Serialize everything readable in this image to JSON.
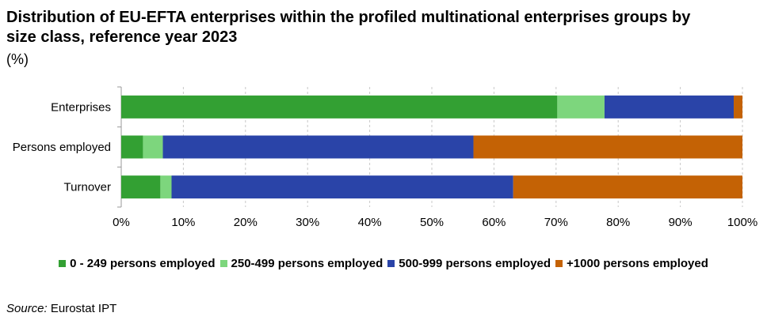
{
  "title": "Distribution of EU-EFTA enterprises within the profiled multinational enterprises groups by size class, reference year 2023",
  "subtitle": "(%)",
  "source": {
    "label": "Source:",
    "text": " Eurostat IPT"
  },
  "colors": [
    "#33a033",
    "#7dd67d",
    "#2a44a8",
    "#c46205"
  ],
  "chart_data": {
    "type": "bar",
    "orientation": "horizontal",
    "stacked": true,
    "categories": [
      "Enterprises",
      "Persons employed",
      "Turnover"
    ],
    "series": [
      {
        "name": "0 - 249 persons employed",
        "values": [
          70.2,
          3.5,
          6.3
        ]
      },
      {
        "name": "250-499 persons employed",
        "values": [
          7.6,
          3.2,
          1.8
        ]
      },
      {
        "name": "500-999 persons employed",
        "values": [
          20.8,
          50.0,
          55.0
        ]
      },
      {
        "name": "+1000 persons employed",
        "values": [
          1.4,
          43.3,
          36.9
        ]
      }
    ],
    "xlim": [
      0,
      100
    ],
    "xticks": [
      "0%",
      "10%",
      "20%",
      "30%",
      "40%",
      "50%",
      "60%",
      "70%",
      "80%",
      "90%",
      "100%"
    ],
    "grid": "vertical dashed",
    "legend": "bottom"
  }
}
